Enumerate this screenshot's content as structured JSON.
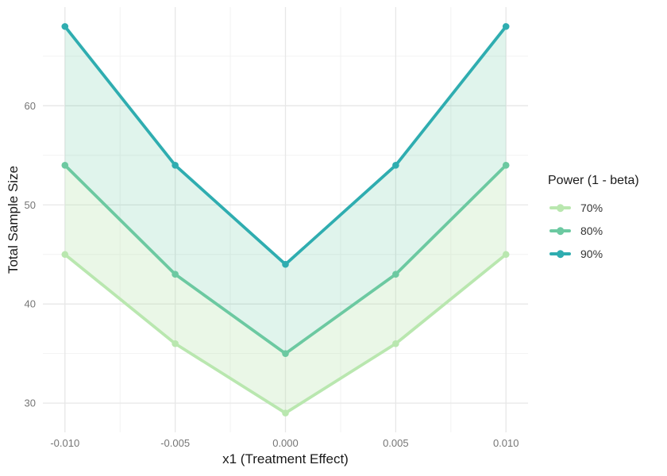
{
  "chart_data": {
    "type": "line",
    "title": "",
    "xlabel": "x1 (Treatment Effect)",
    "ylabel": "Total Sample Size",
    "legend_title": "Power (1 - beta)",
    "legend_position": "right",
    "grid": "on",
    "x": [
      -0.01,
      -0.005,
      0.0,
      0.005,
      0.01
    ],
    "x_tick_labels": [
      "-0.010",
      "-0.005",
      "0.000",
      "0.005",
      "0.010"
    ],
    "x_minor_ticks": [
      -0.0075,
      -0.0025,
      0.0025,
      0.0075
    ],
    "xlim": [
      -0.011,
      0.011
    ],
    "y_ticks": [
      30,
      40,
      50,
      60
    ],
    "y_tick_labels": [
      "30",
      "40",
      "50",
      "60"
    ],
    "y_minor_ticks": [
      35,
      45,
      55,
      65
    ],
    "ylim": [
      27.05,
      69.95
    ],
    "series": [
      {
        "name": "70%",
        "color": "#b9e7af",
        "values": [
          45,
          36,
          29,
          36,
          45
        ]
      },
      {
        "name": "80%",
        "color": "#6cc9a1",
        "values": [
          54,
          43,
          35,
          43,
          54
        ]
      },
      {
        "name": "90%",
        "color": "#2fadb0",
        "values": [
          68,
          54,
          44,
          54,
          68
        ]
      }
    ],
    "ribbons": [
      {
        "between": [
          "70%",
          "80%"
        ],
        "fill": "rgba(184,230,176,0.30)"
      },
      {
        "between": [
          "80%",
          "90%"
        ],
        "fill": "rgba(102,199,161,0.20)"
      }
    ]
  },
  "colors": {
    "background": "#ffffff",
    "grid_major": "#e7e7e7",
    "grid_minor": "#f2f2f2",
    "tick_label": "#757575",
    "axis_title": "#1a1a1a",
    "legend_title": "#1a1a1a",
    "legend_label": "#333333"
  }
}
